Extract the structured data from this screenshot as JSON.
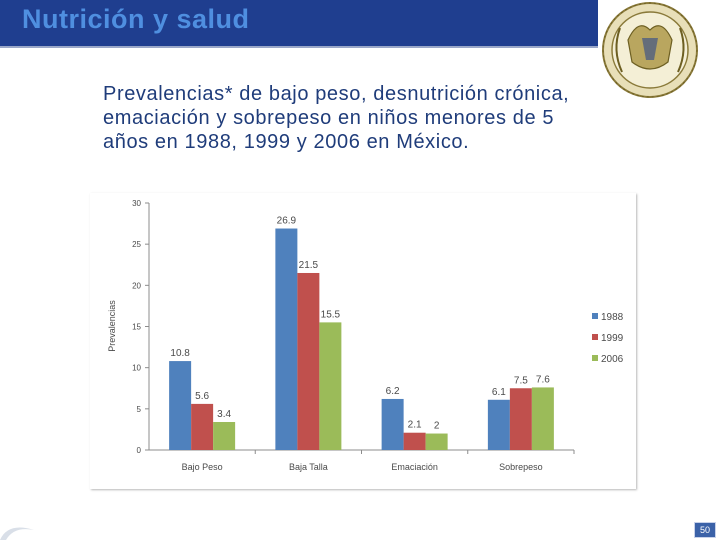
{
  "header": {
    "title": "Nutrición y salud"
  },
  "description": "Prevalencias* de bajo peso, desnutrición crónica, emaciación y sobrepeso en niños menores de 5 años en 1988, 1999 y 2006 en México.",
  "page_number": "50",
  "colors": {
    "banner": "#1f3e8f",
    "title": "#4f8fe0",
    "text": "#1f3c7a"
  },
  "icons": [
    "unam-seal-logo",
    "corner-swoosh-decoration"
  ],
  "chart_data": {
    "type": "bar",
    "categories": [
      "Bajo Peso",
      "Baja Talla",
      "Emaciación",
      "Sobrepeso"
    ],
    "series": [
      {
        "name": "1988",
        "color": "#4f81bd",
        "values": [
          10.8,
          26.9,
          6.2,
          6.1
        ]
      },
      {
        "name": "1999",
        "color": "#c0504d",
        "values": [
          5.6,
          21.5,
          2.1,
          7.5
        ]
      },
      {
        "name": "2006",
        "color": "#9bbb59",
        "values": [
          3.4,
          15.5,
          2,
          7.6
        ]
      }
    ],
    "data_labels": [
      [
        "10.8",
        "26.9",
        "6.2",
        "6.1"
      ],
      [
        "5.6",
        "21.5",
        "2.1",
        "7.5"
      ],
      [
        "3.4",
        "15.5",
        "2",
        "7.6"
      ]
    ],
    "ylabel": "Prevalencias",
    "ylim": [
      0,
      30
    ],
    "yticks": [
      0,
      5,
      10,
      15,
      20,
      25,
      30
    ],
    "legend_position": "right",
    "grid": false
  }
}
